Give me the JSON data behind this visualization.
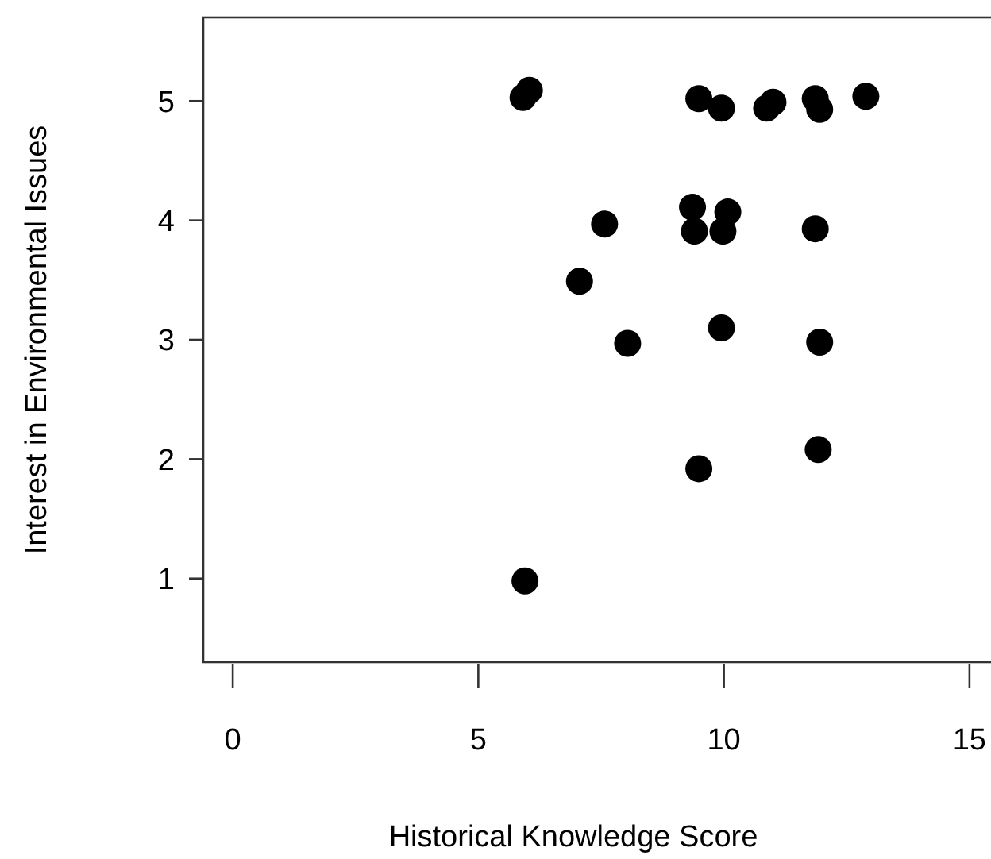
{
  "chart_data": {
    "type": "scatter",
    "xlabel": "Historical Knowledge Score",
    "ylabel": "Interest in Environmental Issues",
    "xlim": [
      -0.6,
      15.6
    ],
    "ylim": [
      0.3,
      5.7
    ],
    "xticks": [
      0,
      5,
      10,
      15
    ],
    "yticks": [
      1,
      2,
      3,
      4,
      5
    ],
    "marker": "circle",
    "grid": false,
    "series": [
      {
        "color": "#000000",
        "x": [
          5.91,
          6.04,
          9.49,
          9.95,
          10.87,
          11.0,
          11.86,
          11.95,
          12.89,
          7.57,
          9.36,
          9.4,
          10.08,
          9.98,
          11.86,
          7.06,
          8.04,
          9.95,
          11.95,
          9.49,
          11.92,
          5.95
        ],
        "values": [
          5.03,
          5.09,
          5.02,
          4.94,
          4.94,
          4.99,
          5.02,
          4.93,
          5.04,
          3.97,
          4.11,
          3.91,
          4.07,
          3.91,
          3.93,
          3.49,
          2.97,
          3.1,
          2.98,
          1.92,
          2.08,
          0.98
        ]
      }
    ]
  }
}
